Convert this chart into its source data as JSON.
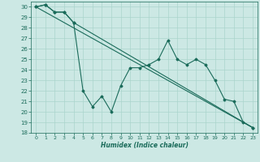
{
  "xlabel": "Humidex (Indice chaleur)",
  "background_color": "#cce8e4",
  "grid_color": "#aad4cc",
  "line_color": "#1a6b5a",
  "xlim": [
    -0.5,
    23.5
  ],
  "ylim": [
    18,
    30.5
  ],
  "xticks": [
    0,
    1,
    2,
    3,
    4,
    5,
    6,
    7,
    8,
    9,
    10,
    11,
    12,
    13,
    14,
    15,
    16,
    17,
    18,
    19,
    20,
    21,
    22,
    23
  ],
  "yticks": [
    18,
    19,
    20,
    21,
    22,
    23,
    24,
    25,
    26,
    27,
    28,
    29,
    30
  ],
  "series1_x": [
    0,
    1,
    2,
    3,
    4,
    5,
    6,
    7,
    8,
    9,
    10,
    11,
    12,
    13,
    14,
    15,
    16,
    17,
    18,
    19,
    20,
    21,
    22,
    23
  ],
  "series1_y": [
    30.0,
    30.2,
    29.5,
    29.5,
    28.5,
    22.0,
    20.5,
    21.5,
    20.0,
    22.5,
    24.2,
    24.2,
    24.5,
    25.0,
    26.8,
    25.0,
    24.5,
    25.0,
    24.5,
    23.0,
    21.2,
    21.0,
    19.0,
    18.5
  ],
  "series2_x": [
    0,
    1,
    2,
    3,
    4,
    23
  ],
  "series2_y": [
    30.0,
    30.2,
    29.5,
    29.5,
    28.5,
    18.5
  ],
  "series3_x": [
    0,
    23
  ],
  "series3_y": [
    30.0,
    18.5
  ]
}
